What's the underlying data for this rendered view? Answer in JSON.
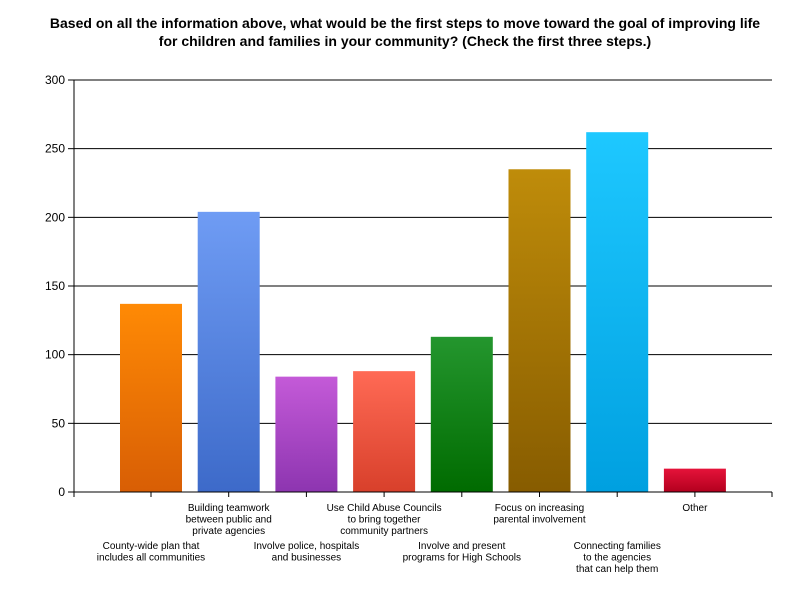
{
  "chart_data": {
    "type": "bar",
    "title": "Based on all the information above, what would be the first steps to move toward the goal of improving life for children and families in your community? (Check the first three steps.)",
    "xlabel": "",
    "ylabel": "",
    "ylim": [
      0,
      300
    ],
    "yticks": [
      "0",
      "50",
      "100",
      "150",
      "200",
      "250",
      "300"
    ],
    "grid": true,
    "legend": "none",
    "categories": [
      "County-wide plan that includes all communities",
      "Building teamwork between public and private agencies",
      "Involve police, hospitals and businesses",
      "Use Child Abuse Councils to bring together community partners",
      "Involve and present programs for High Schools",
      "Focus on increasing parental involvement",
      "Connecting families to the agencies that can help them",
      "Other"
    ],
    "category_label_lines": [
      [
        "County-wide plan that",
        "includes all communities"
      ],
      [
        "Building teamwork",
        "between public and",
        "private agencies"
      ],
      [
        "Involve police, hospitals",
        "and businesses"
      ],
      [
        "Use Child Abuse Councils",
        "to bring together",
        "community partners"
      ],
      [
        "Involve and present",
        "programs for High Schools"
      ],
      [
        "Focus on increasing",
        "parental involvement"
      ],
      [
        "Connecting families",
        "to the agencies",
        "that can help them"
      ],
      [
        "Other"
      ]
    ],
    "values": [
      137,
      204,
      84,
      88,
      113,
      235,
      262,
      17
    ],
    "colors": [
      [
        "#ff8a05",
        "#d85e05"
      ],
      [
        "#6f9cf4",
        "#3d6ac9"
      ],
      [
        "#c45ad8",
        "#8d35b0"
      ],
      [
        "#ff6a55",
        "#d8402b"
      ],
      [
        "#24962e",
        "#006b00"
      ],
      [
        "#bf8c0a",
        "#875c00"
      ],
      [
        "#1ec8ff",
        "#00a0e0"
      ],
      [
        "#e5133a",
        "#b3001e"
      ]
    ]
  }
}
